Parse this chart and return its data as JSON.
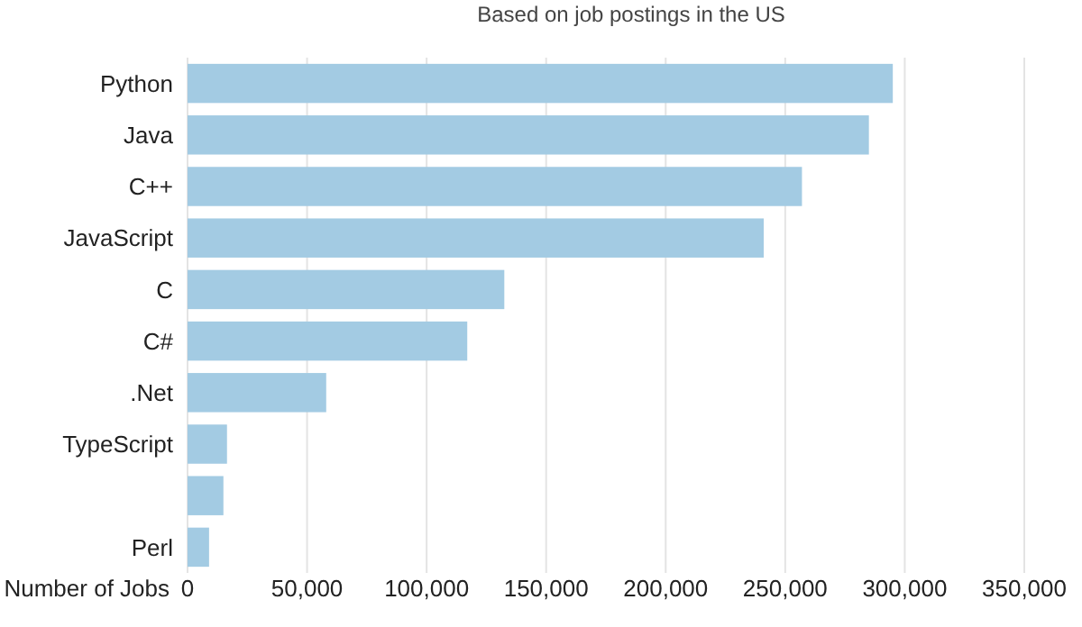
{
  "chart_data": {
    "type": "bar",
    "orientation": "horizontal",
    "subtitle": "Based on job postings in the US",
    "xlabel": "Number of Jobs",
    "categories": [
      "Python",
      "Java",
      "C++",
      "JavaScript",
      "C",
      "C#",
      ".Net",
      "TypeScript",
      null,
      "Perl"
    ],
    "values": [
      295000,
      285000,
      257000,
      241000,
      132500,
      117000,
      58000,
      16500,
      15000,
      9000
    ],
    "color": "#a3cbe3",
    "xlim": [
      0,
      350000
    ],
    "xticks": [
      0,
      {
        "value": 50000,
        "label": "50,000"
      },
      {
        "value": 100000,
        "label": "100,000"
      },
      {
        "value": 150000,
        "label": "150,000"
      },
      {
        "value": 200000,
        "label": "200,000"
      },
      {
        "value": 250000,
        "label": "250,000"
      },
      {
        "value": 300000,
        "label": "300,000"
      },
      {
        "value": 350000,
        "label": "350,000"
      }
    ],
    "grid": "x"
  }
}
